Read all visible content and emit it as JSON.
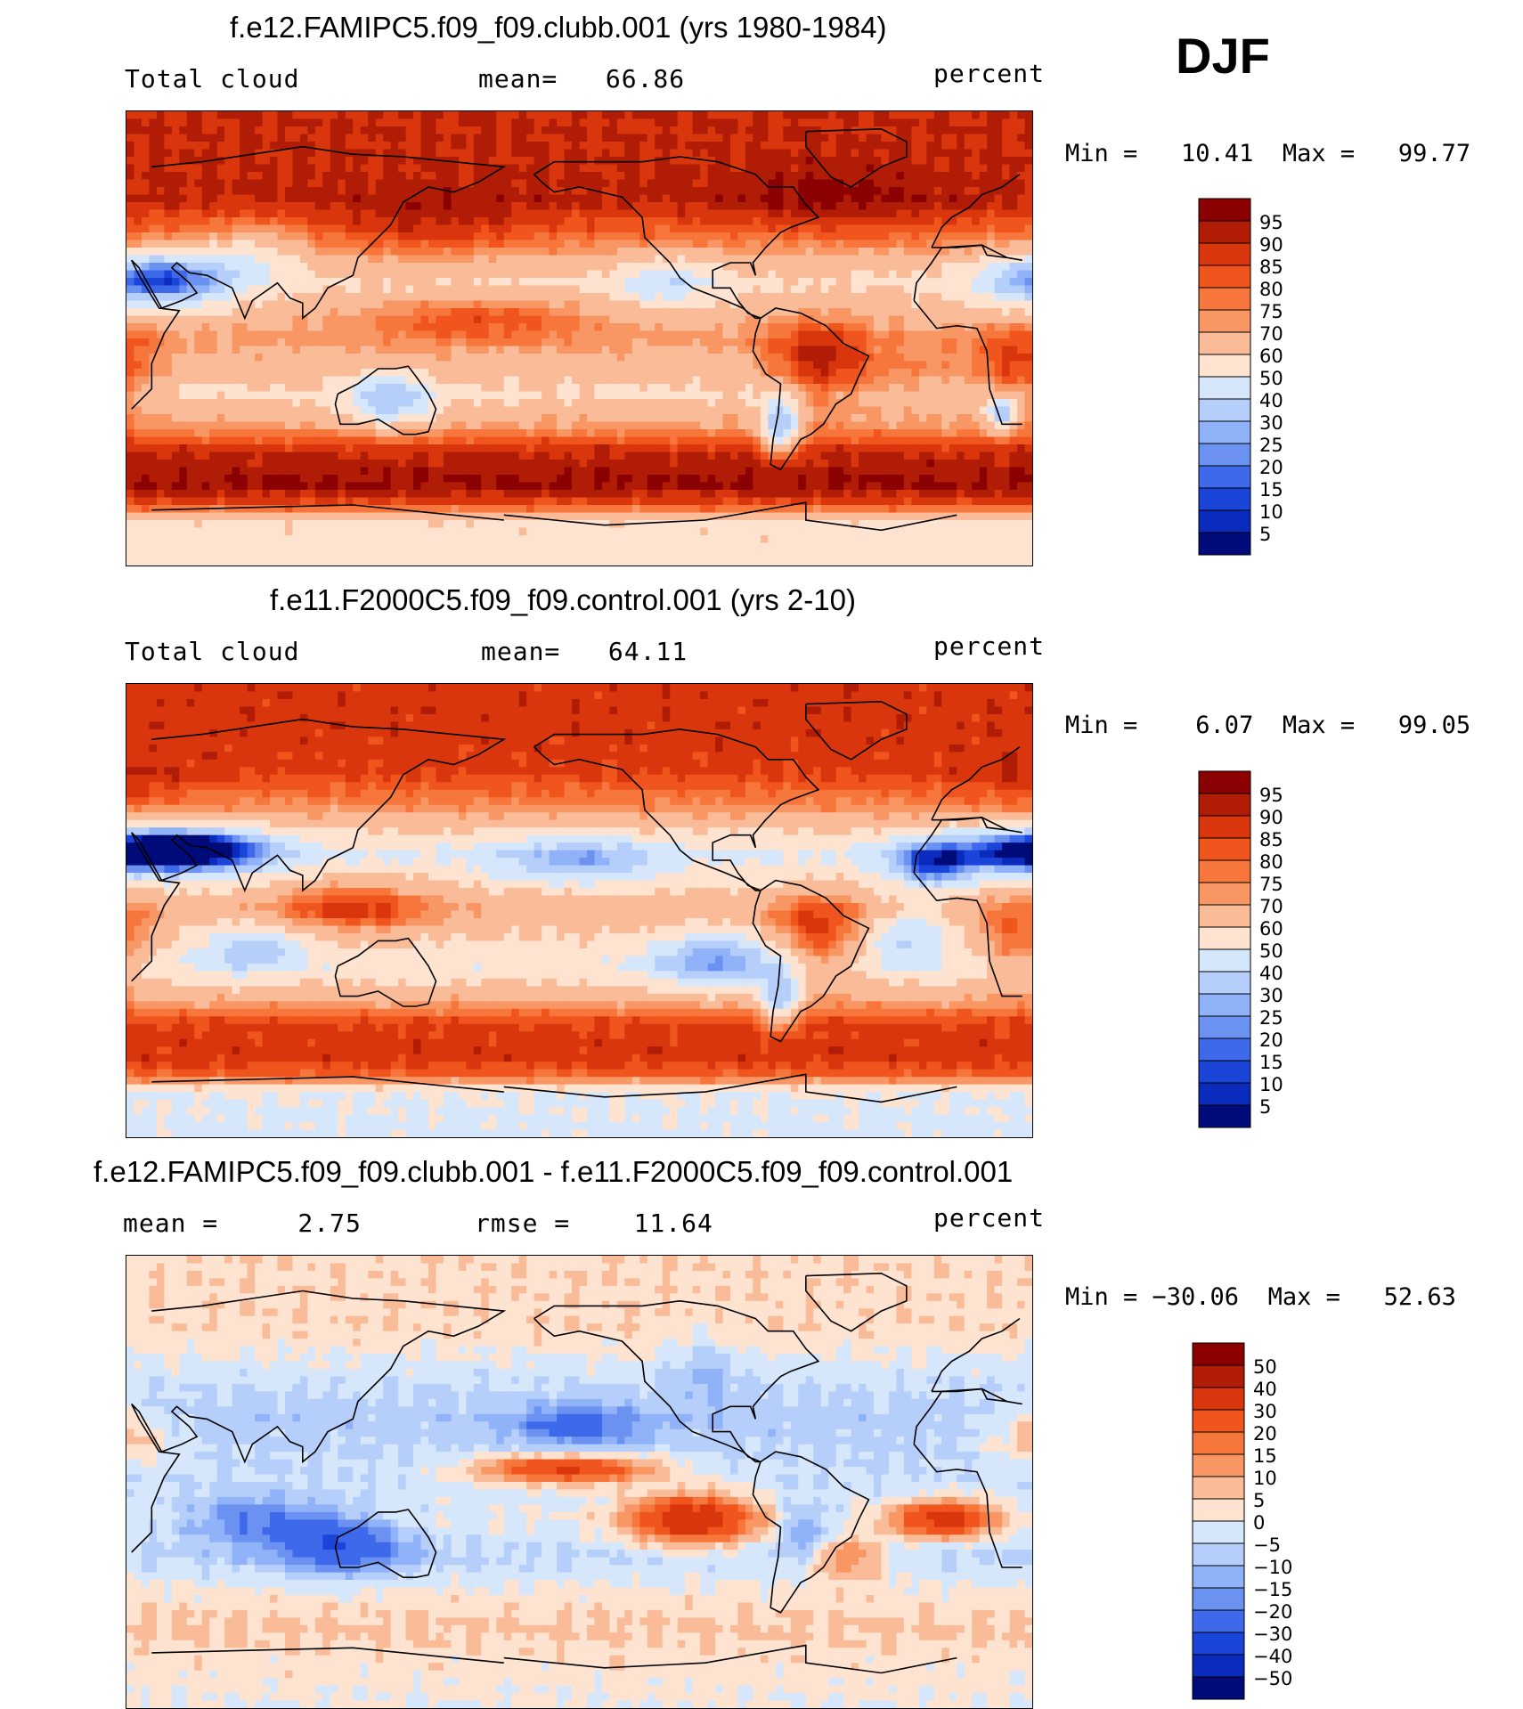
{
  "header": {
    "season": "DJF"
  },
  "panels": [
    {
      "title": "f.e12.FAMIPC5.f09_f09.clubb.001 (yrs 1980-1984)",
      "left_label": "Total cloud",
      "mean_text": "mean=   66.86",
      "units": "percent",
      "minmax": "Min =   10.41  Max =   99.77",
      "colorbar_labels": [
        "95",
        "90",
        "85",
        "80",
        "75",
        "70",
        "60",
        "50",
        "40",
        "30",
        "25",
        "20",
        "15",
        "10",
        "5"
      ],
      "colorbar_colors": [
        "#8b0000",
        "#b01c05",
        "#d9360d",
        "#f0551e",
        "#f6763c",
        "#f89664",
        "#f9bb98",
        "#fde3d0",
        "#d6e6fb",
        "#b6cefa",
        "#8fb2f8",
        "#6b92f0",
        "#3e69ea",
        "#1b45d8",
        "#0b2bbd",
        "#000b7a"
      ]
    },
    {
      "title": "f.e11.F2000C5.f09_f09.control.001 (yrs 2-10)",
      "left_label": "Total cloud",
      "mean_text": "mean=   64.11",
      "units": "percent",
      "minmax": "Min =    6.07  Max =   99.05",
      "colorbar_labels": [
        "95",
        "90",
        "85",
        "80",
        "75",
        "70",
        "60",
        "50",
        "40",
        "30",
        "25",
        "20",
        "15",
        "10",
        "5"
      ],
      "colorbar_colors": [
        "#8b0000",
        "#b01c05",
        "#d9360d",
        "#f0551e",
        "#f6763c",
        "#f89664",
        "#f9bb98",
        "#fde3d0",
        "#d6e6fb",
        "#b6cefa",
        "#8fb2f8",
        "#6b92f0",
        "#3e69ea",
        "#1b45d8",
        "#0b2bbd",
        "#000b7a"
      ]
    },
    {
      "title": "f.e12.FAMIPC5.f09_f09.clubb.001 - f.e11.F2000C5.f09_f09.control.001",
      "left_label": "mean =     2.75",
      "mean_text": "rmse =    11.64",
      "units": "percent",
      "minmax": "Min = −30.06  Max =   52.63",
      "colorbar_labels": [
        "50",
        "40",
        "30",
        "20",
        "15",
        "10",
        "5",
        "0",
        "−5",
        "−10",
        "−15",
        "−20",
        "−30",
        "−40",
        "−50"
      ],
      "colorbar_colors": [
        "#8b0000",
        "#b01c05",
        "#d9360d",
        "#f0551e",
        "#f6763c",
        "#f89664",
        "#f9bb98",
        "#fde3d0",
        "#d6e6fb",
        "#b6cefa",
        "#8fb2f8",
        "#6b92f0",
        "#3e69ea",
        "#1b45d8",
        "#0b2bbd",
        "#000b7a"
      ]
    }
  ],
  "chart_data": [
    {
      "type": "heatmap",
      "title": "f.e12.FAMIPC5.f09_f09.clubb.001 (yrs 1980-1984)",
      "variable": "Total cloud",
      "units": "percent",
      "mean": 66.86,
      "min": 10.41,
      "max": 99.77,
      "contour_levels": [
        5,
        10,
        15,
        20,
        25,
        30,
        40,
        50,
        60,
        70,
        75,
        80,
        85,
        90,
        95
      ],
      "features": {
        "southern_ocean_storm_track": 95,
        "north_pacific": 92,
        "north_atlantic": 92,
        "arctic": 90,
        "tropical_west_pacific": 88,
        "south_america": 85,
        "southern_africa": 80,
        "sahara_arabia": 35,
        "australia": 30,
        "subtropical_east_pacific": 55,
        "antarctica": 55
      }
    },
    {
      "type": "heatmap",
      "title": "f.e11.F2000C5.f09_f09.control.001 (yrs 2-10)",
      "variable": "Total cloud",
      "units": "percent",
      "mean": 64.11,
      "min": 6.07,
      "max": 99.05,
      "contour_levels": [
        5,
        10,
        15,
        20,
        25,
        30,
        40,
        50,
        60,
        70,
        75,
        80,
        85,
        90,
        95
      ],
      "features": {
        "southern_ocean_storm_track": 88,
        "north_pacific": 88,
        "north_atlantic": 90,
        "arctic": 88,
        "maritime_continent": 85,
        "south_america": 85,
        "sahara_arabia": 15,
        "southeast_pacific": 30,
        "north_pacific_subtropics": 35,
        "australia": 45,
        "antarctica": 50
      }
    },
    {
      "type": "heatmap",
      "title": "f.e12.FAMIPC5.f09_f09.clubb.001 - f.e11.F2000C5.f09_f09.control.001",
      "variable": "Total cloud difference",
      "units": "percent",
      "mean": 2.75,
      "rmse": 11.64,
      "min": -30.06,
      "max": 52.63,
      "contour_levels": [
        -50,
        -40,
        -30,
        -20,
        -15,
        -10,
        -5,
        0,
        5,
        10,
        15,
        20,
        30,
        40,
        50
      ],
      "features": {
        "central_pacific_band": 35,
        "southeast_pacific": 40,
        "south_atlantic": 30,
        "australia": -25,
        "indian_ocean": -20,
        "north_pacific": -18,
        "northern_land": 5
      }
    }
  ]
}
